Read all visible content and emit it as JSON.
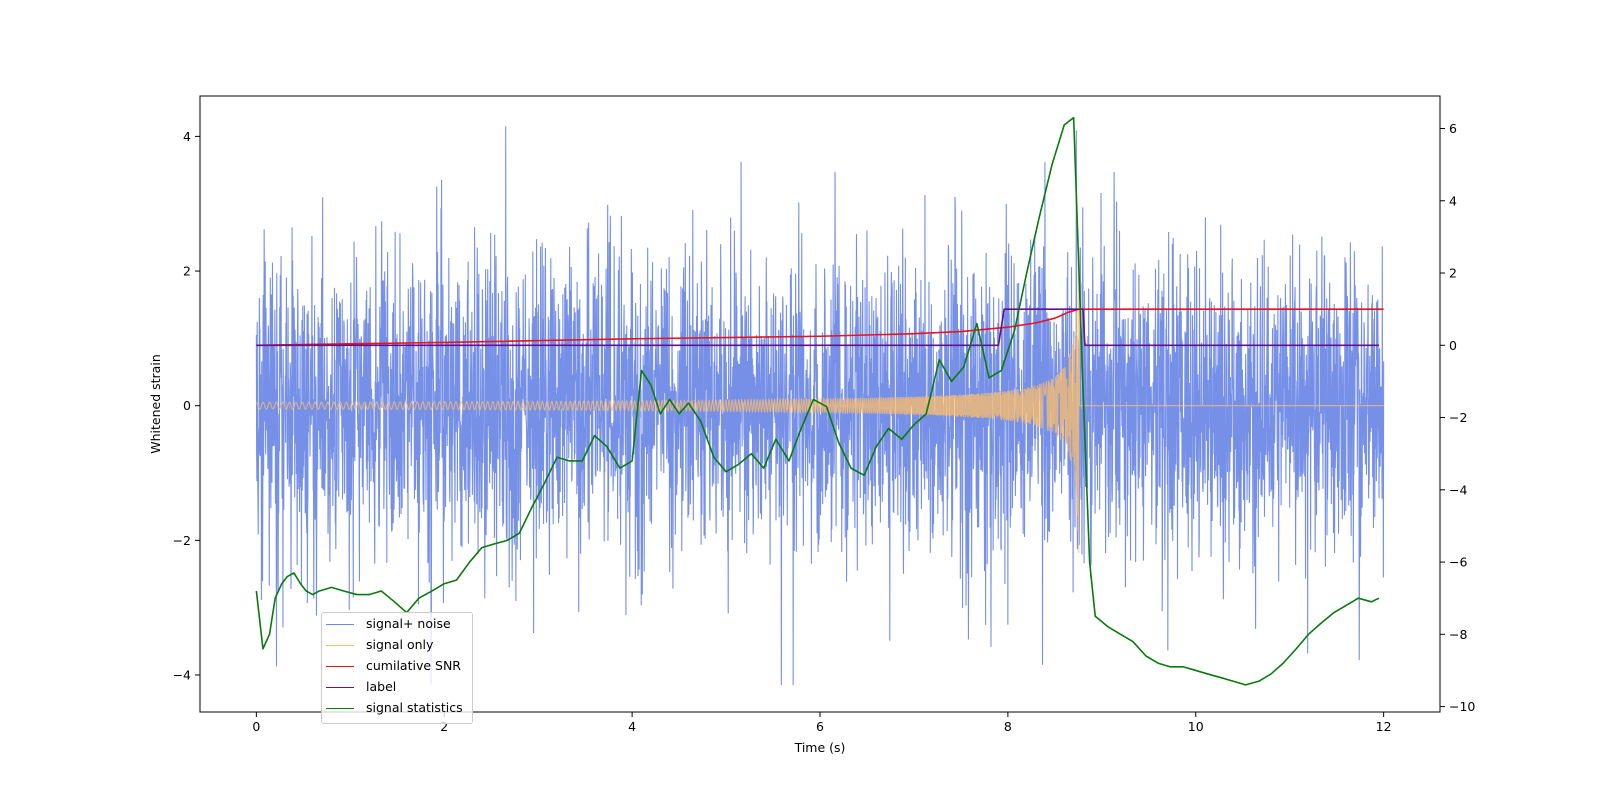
{
  "chart_data": {
    "type": "line",
    "xlabel": "Time (s)",
    "ylabel": "Whitened strain",
    "y2label": "",
    "xlim": [
      -0.6,
      12.6
    ],
    "ylim": [
      -4.55,
      4.6
    ],
    "y2lim": [
      -10.15,
      6.9
    ],
    "xticks": [
      0,
      2,
      4,
      6,
      8,
      10,
      12
    ],
    "yticks": [
      -4,
      -2,
      0,
      2,
      4
    ],
    "y2ticks": [
      -10,
      -8,
      -6,
      -4,
      -2,
      0,
      2,
      4,
      6
    ],
    "legend_location": "lower-left",
    "colors": {
      "signal_noise": "#6a87e6",
      "signal_only": "#ffbe6a",
      "cumulative_snr": "#e8131c",
      "label": "#6a0e8e",
      "signal_statistics": "#0b7a0b"
    },
    "series": [
      {
        "key": "signal_noise",
        "name": "signal+ noise",
        "axis": "left",
        "note": "whitened noise plus injected chirp, roughly Gaussian with sigma about 1.1, spanning 0 to 12 s"
      },
      {
        "key": "signal_only",
        "name": "signal only",
        "axis": "left",
        "chirp_start": 0,
        "merger_time": 8.76,
        "amplitude_start": 0.05,
        "amplitude_peak": 2.45
      },
      {
        "key": "cumulative_snr",
        "name": "cumilative SNR",
        "axis": "right",
        "x": [
          0,
          2,
          4,
          6,
          7,
          7.5,
          8,
          8.3,
          8.5,
          8.65,
          8.76,
          8.78,
          12
        ],
        "y": [
          0,
          0.08,
          0.18,
          0.25,
          0.32,
          0.38,
          0.5,
          0.62,
          0.75,
          0.92,
          1.0,
          1.0,
          1.0
        ]
      },
      {
        "key": "label",
        "name": "label",
        "axis": "right",
        "x": [
          0,
          7.9,
          7.96,
          8.8,
          8.82,
          11.95
        ],
        "y": [
          0,
          0,
          1.0,
          1.0,
          0,
          0
        ]
      },
      {
        "key": "signal_statistics",
        "name": "signal statistics",
        "axis": "right",
        "x": [
          0,
          0.07,
          0.14,
          0.2,
          0.27,
          0.33,
          0.4,
          0.47,
          0.53,
          0.6,
          0.67,
          0.8,
          0.93,
          1.07,
          1.2,
          1.33,
          1.47,
          1.6,
          1.73,
          1.87,
          2.0,
          2.13,
          2.27,
          2.4,
          2.53,
          2.67,
          2.8,
          2.93,
          3.07,
          3.2,
          3.33,
          3.47,
          3.6,
          3.73,
          3.87,
          4.0,
          4.1,
          4.2,
          4.3,
          4.4,
          4.5,
          4.6,
          4.73,
          4.87,
          5.0,
          5.13,
          5.27,
          5.4,
          5.53,
          5.67,
          5.8,
          5.93,
          6.07,
          6.2,
          6.33,
          6.47,
          6.6,
          6.73,
          6.87,
          7.0,
          7.13,
          7.27,
          7.4,
          7.53,
          7.67,
          7.8,
          7.93,
          8.07,
          8.2,
          8.33,
          8.47,
          8.6,
          8.7,
          8.8,
          8.87,
          8.93,
          9.07,
          9.2,
          9.33,
          9.47,
          9.6,
          9.73,
          9.87,
          10.0,
          10.13,
          10.27,
          10.4,
          10.53,
          10.67,
          10.8,
          10.93,
          11.07,
          11.2,
          11.33,
          11.47,
          11.6,
          11.73,
          11.87,
          11.95
        ],
        "y": [
          -6.8,
          -8.4,
          -8.0,
          -7.0,
          -6.6,
          -6.4,
          -6.3,
          -6.6,
          -6.8,
          -6.9,
          -6.8,
          -6.7,
          -6.8,
          -6.9,
          -6.9,
          -6.8,
          -7.1,
          -7.4,
          -7.0,
          -6.8,
          -6.6,
          -6.5,
          -6.0,
          -5.6,
          -5.5,
          -5.4,
          -5.2,
          -4.5,
          -3.8,
          -3.1,
          -3.2,
          -3.2,
          -2.5,
          -2.8,
          -3.4,
          -3.2,
          -0.7,
          -1.1,
          -1.9,
          -1.5,
          -1.9,
          -1.6,
          -2.1,
          -3.1,
          -3.5,
          -3.3,
          -3.0,
          -3.4,
          -2.6,
          -3.2,
          -2.3,
          -1.5,
          -1.7,
          -2.7,
          -3.4,
          -3.6,
          -2.8,
          -2.3,
          -2.6,
          -2.2,
          -1.9,
          -0.4,
          -1.0,
          -0.6,
          0.6,
          -0.9,
          -0.7,
          0.4,
          2.0,
          3.5,
          5.0,
          6.1,
          6.3,
          -1.2,
          -6.0,
          -7.5,
          -7.8,
          -8.0,
          -8.2,
          -8.6,
          -8.8,
          -8.9,
          -8.9,
          -9.0,
          -9.1,
          -9.2,
          -9.3,
          -9.4,
          -9.3,
          -9.1,
          -8.8,
          -8.4,
          -8.0,
          -7.7,
          -7.4,
          -7.2,
          -7.0,
          -7.1,
          -7.0
        ]
      }
    ]
  }
}
